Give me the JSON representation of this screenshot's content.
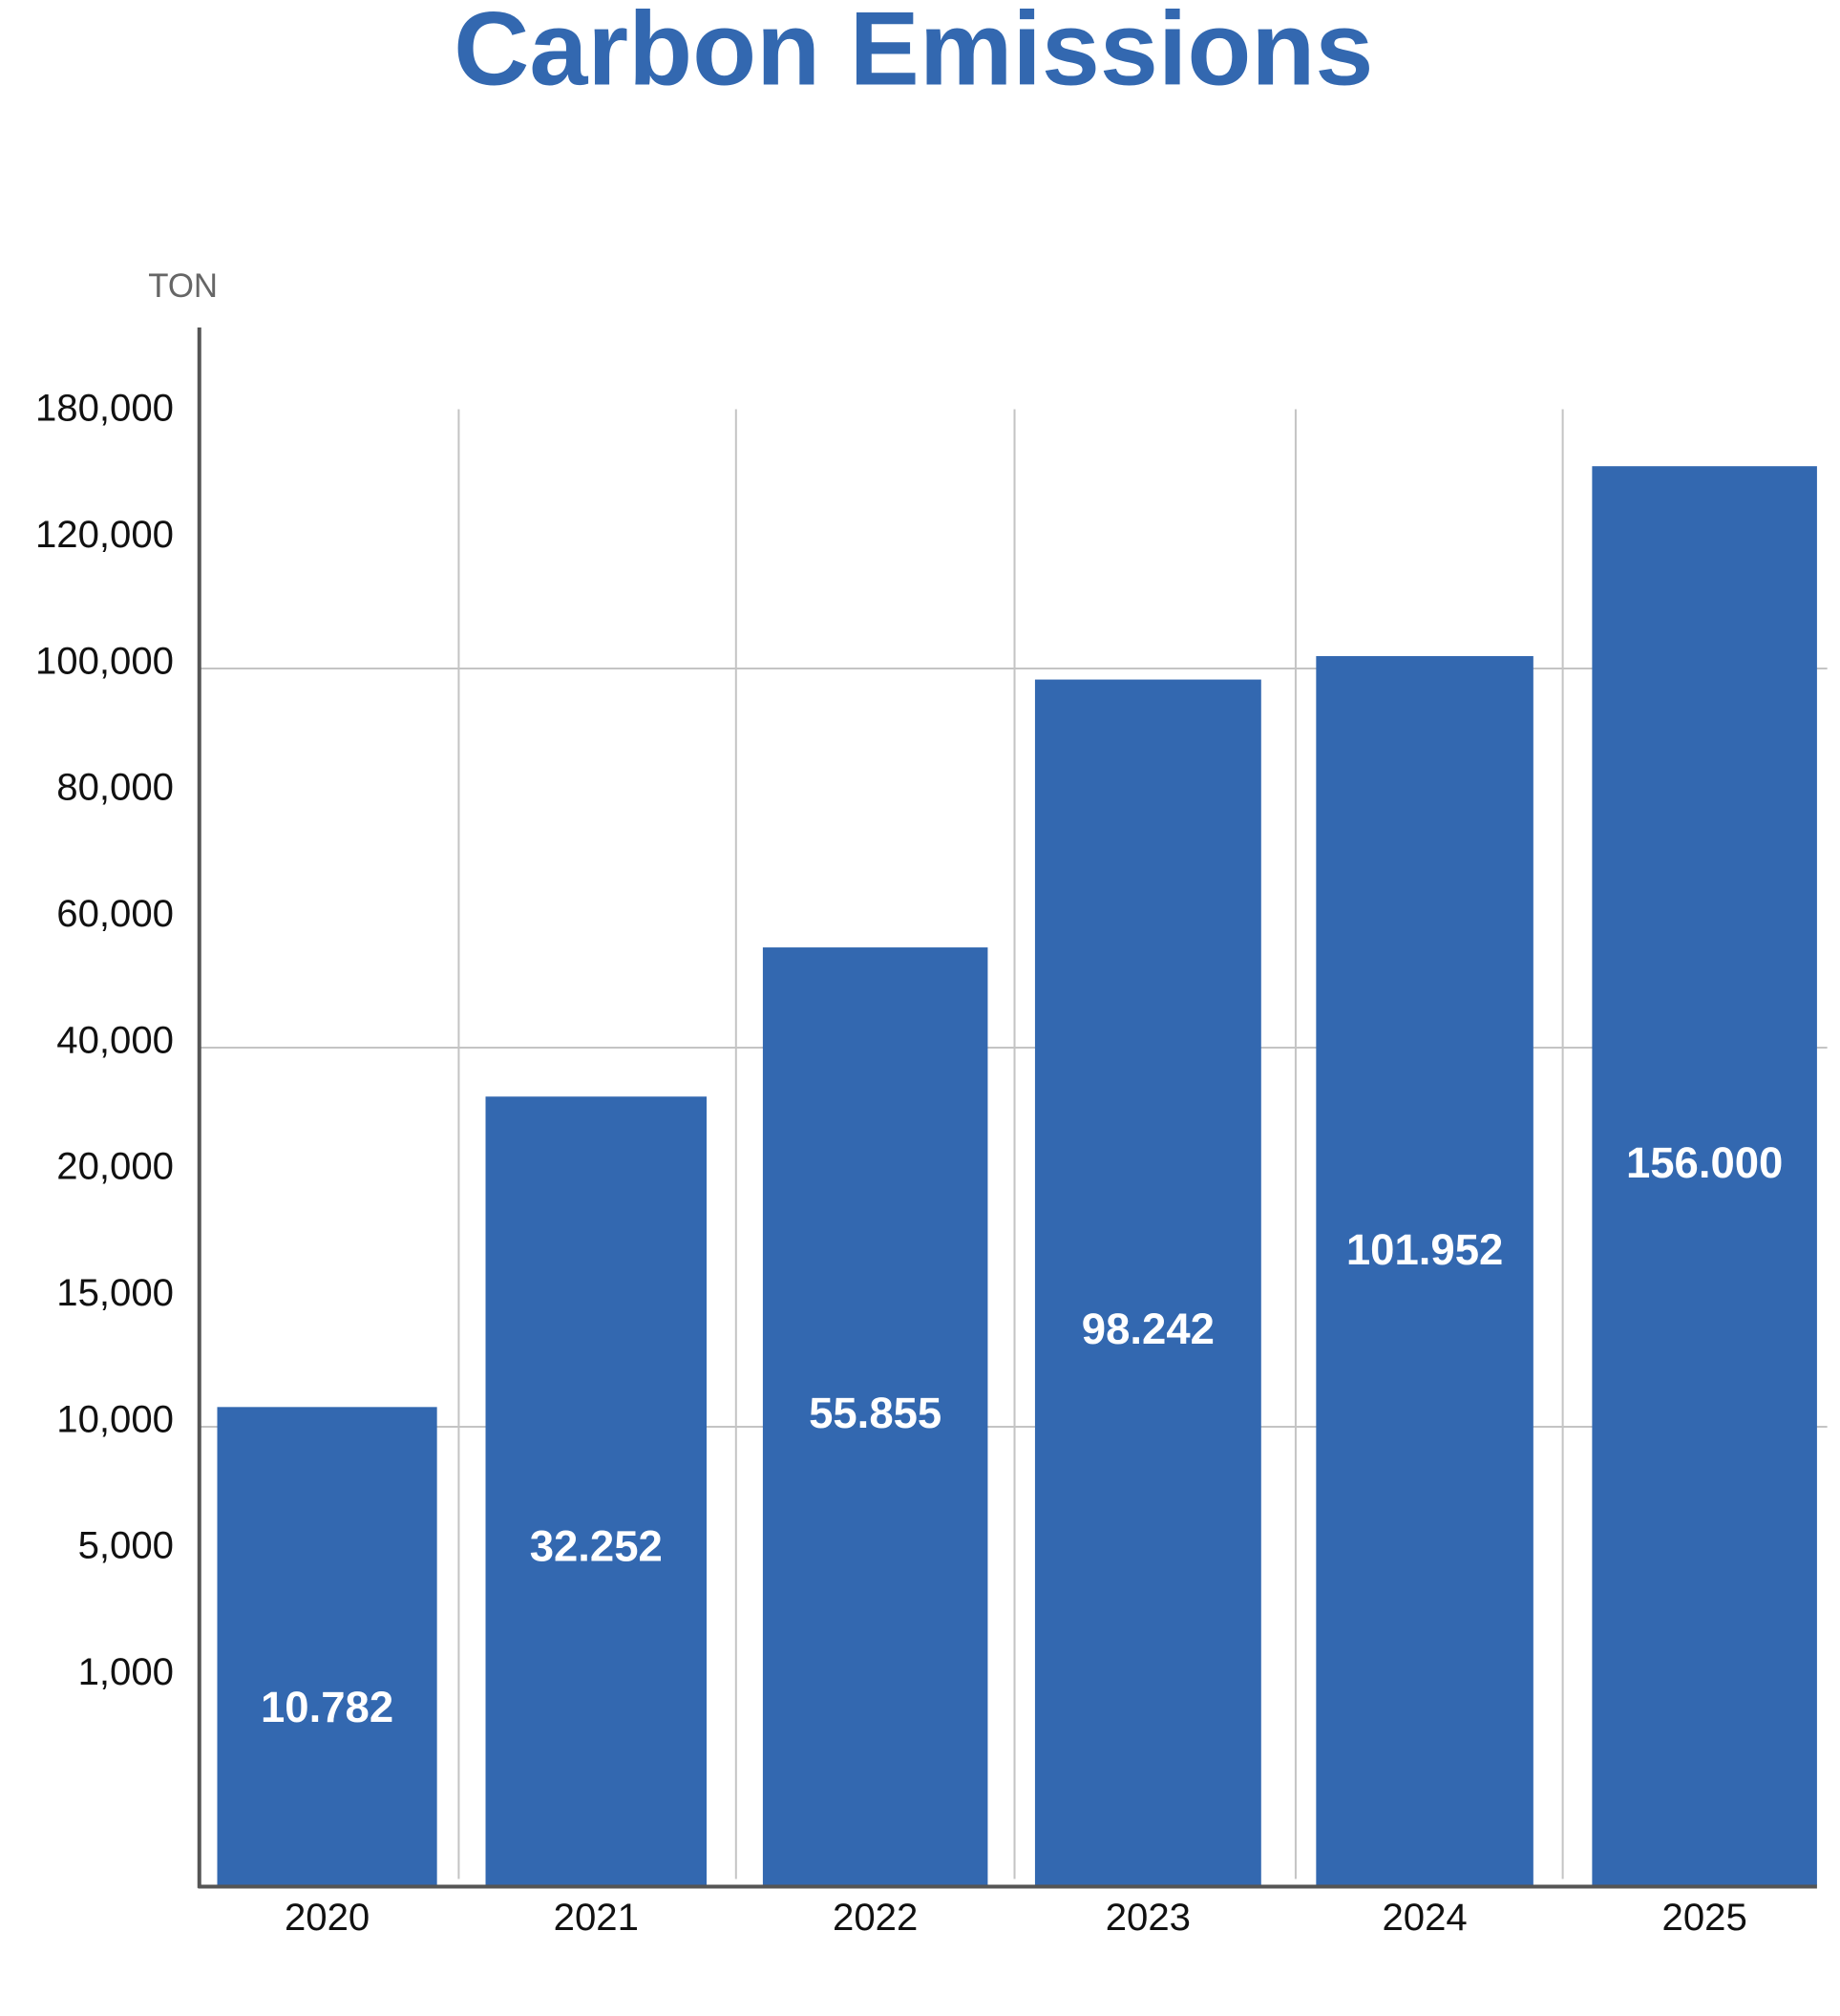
{
  "chart_data": {
    "type": "bar",
    "title": "Carbon Emissions",
    "ylabel": "TON",
    "xlabel": "",
    "categories": [
      "2020",
      "2021",
      "2022",
      "2023",
      "2024",
      "2025"
    ],
    "values": [
      10782,
      32252,
      55855,
      98242,
      101952,
      156000
    ],
    "data_labels": [
      "10.782",
      "32.252",
      "55.855",
      "98.242",
      "101.952",
      "156.000"
    ],
    "y_ticks": [
      {
        "value": 180000,
        "label": "180,000"
      },
      {
        "value": 120000,
        "label": "120,000"
      },
      {
        "value": 100000,
        "label": "100,000"
      },
      {
        "value": 80000,
        "label": "80,000"
      },
      {
        "value": 60000,
        "label": "60,000"
      },
      {
        "value": 40000,
        "label": "40,000"
      },
      {
        "value": 20000,
        "label": "20,000"
      },
      {
        "value": 15000,
        "label": "15,000"
      },
      {
        "value": 10000,
        "label": "10,000"
      },
      {
        "value": 5000,
        "label": "5,000"
      },
      {
        "value": 1000,
        "label": "1,000"
      }
    ],
    "gridlines_at": [
      100000,
      40000,
      10000
    ],
    "grid": true,
    "bar_color": "#3368B0",
    "title_color": "#3368B0"
  }
}
